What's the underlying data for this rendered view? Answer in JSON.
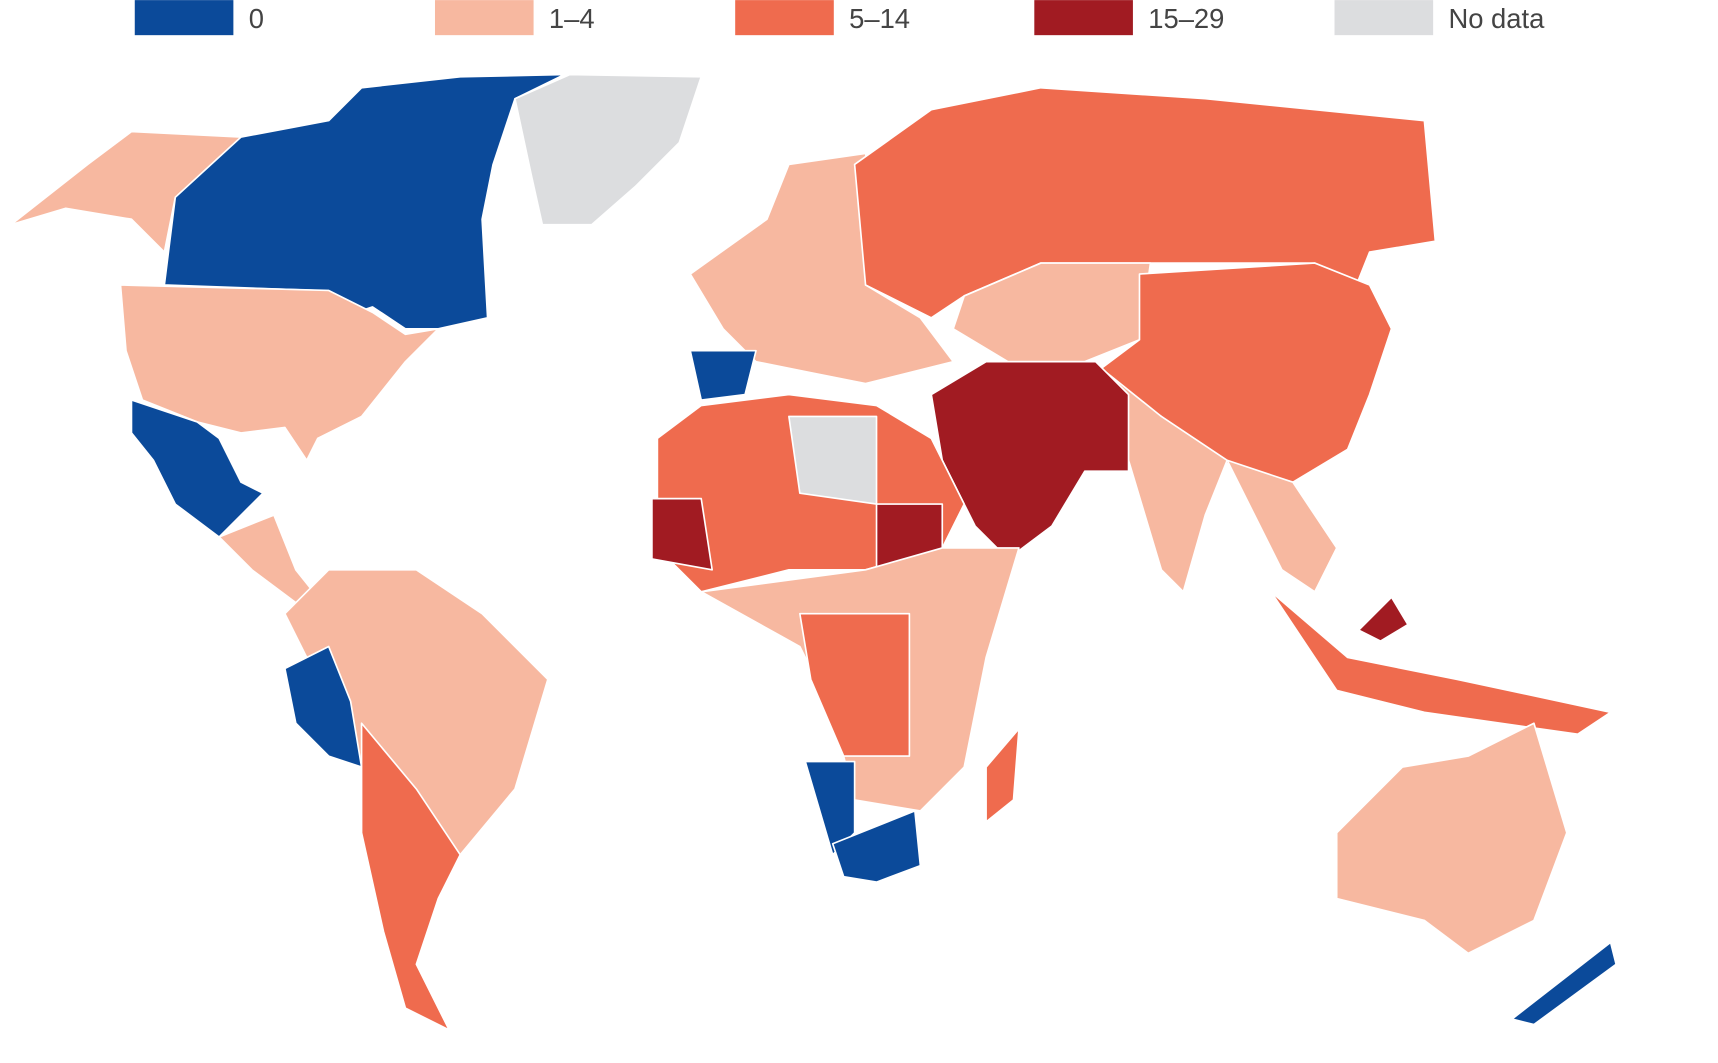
{
  "legend": {
    "items": [
      {
        "label": "0",
        "color": "#0b4a9a"
      },
      {
        "label": "1–4",
        "color": "#f7b8a0"
      },
      {
        "label": "5–14",
        "color": "#ef6b4e"
      },
      {
        "label": "15–29",
        "color": "#a11b22"
      },
      {
        "label": "No data",
        "color": "#dcdddf"
      }
    ]
  }
}
